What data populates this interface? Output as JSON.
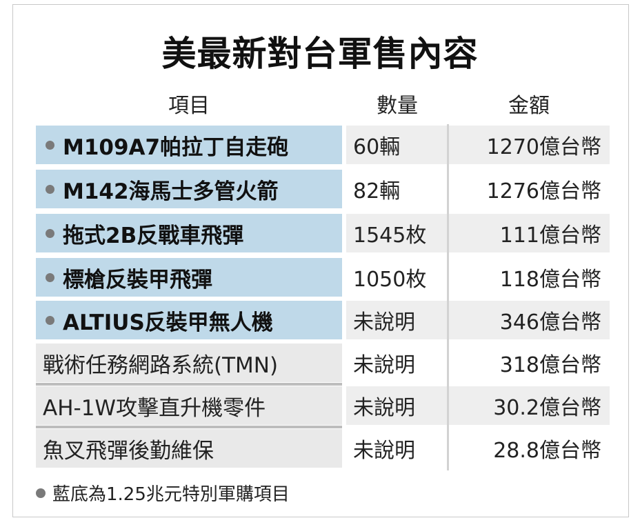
{
  "title": "美最新對台軍售內容",
  "headers": {
    "item": "項目",
    "qty": "數量",
    "amount": "金額"
  },
  "rows": [
    {
      "item": "M109A7帕拉丁自走砲",
      "qty": "60輛",
      "amount": "1270億台幣",
      "special": true
    },
    {
      "item": "M142海馬士多管火箭",
      "qty": "82輛",
      "amount": "1276億台幣",
      "special": true
    },
    {
      "item": "拖式2B反戰車飛彈",
      "qty": "1545枚",
      "amount": "111億台幣",
      "special": true
    },
    {
      "item": "標槍反裝甲飛彈",
      "qty": "1050枚",
      "amount": "118億台幣",
      "special": true
    },
    {
      "item": "ALTIUS反裝甲無人機",
      "qty": "未說明",
      "amount": "346億台幣",
      "special": true
    },
    {
      "item": "戰術任務網路系統(TMN)",
      "qty": "未說明",
      "amount": "318億台幣",
      "special": false
    },
    {
      "item": "AH-1W攻擊直升機零件",
      "qty": "未說明",
      "amount": "30.2億台幣",
      "special": false
    },
    {
      "item": "魚叉飛彈後勤維保",
      "qty": "未說明",
      "amount": "28.8億台幣",
      "special": false
    }
  ],
  "footnote": "藍底為1.25兆元特別軍購項目",
  "colors": {
    "special_bg": "#bfd9e9",
    "normal_bg": "#e9e9e9",
    "shade_bg": "#eeeeee"
  }
}
